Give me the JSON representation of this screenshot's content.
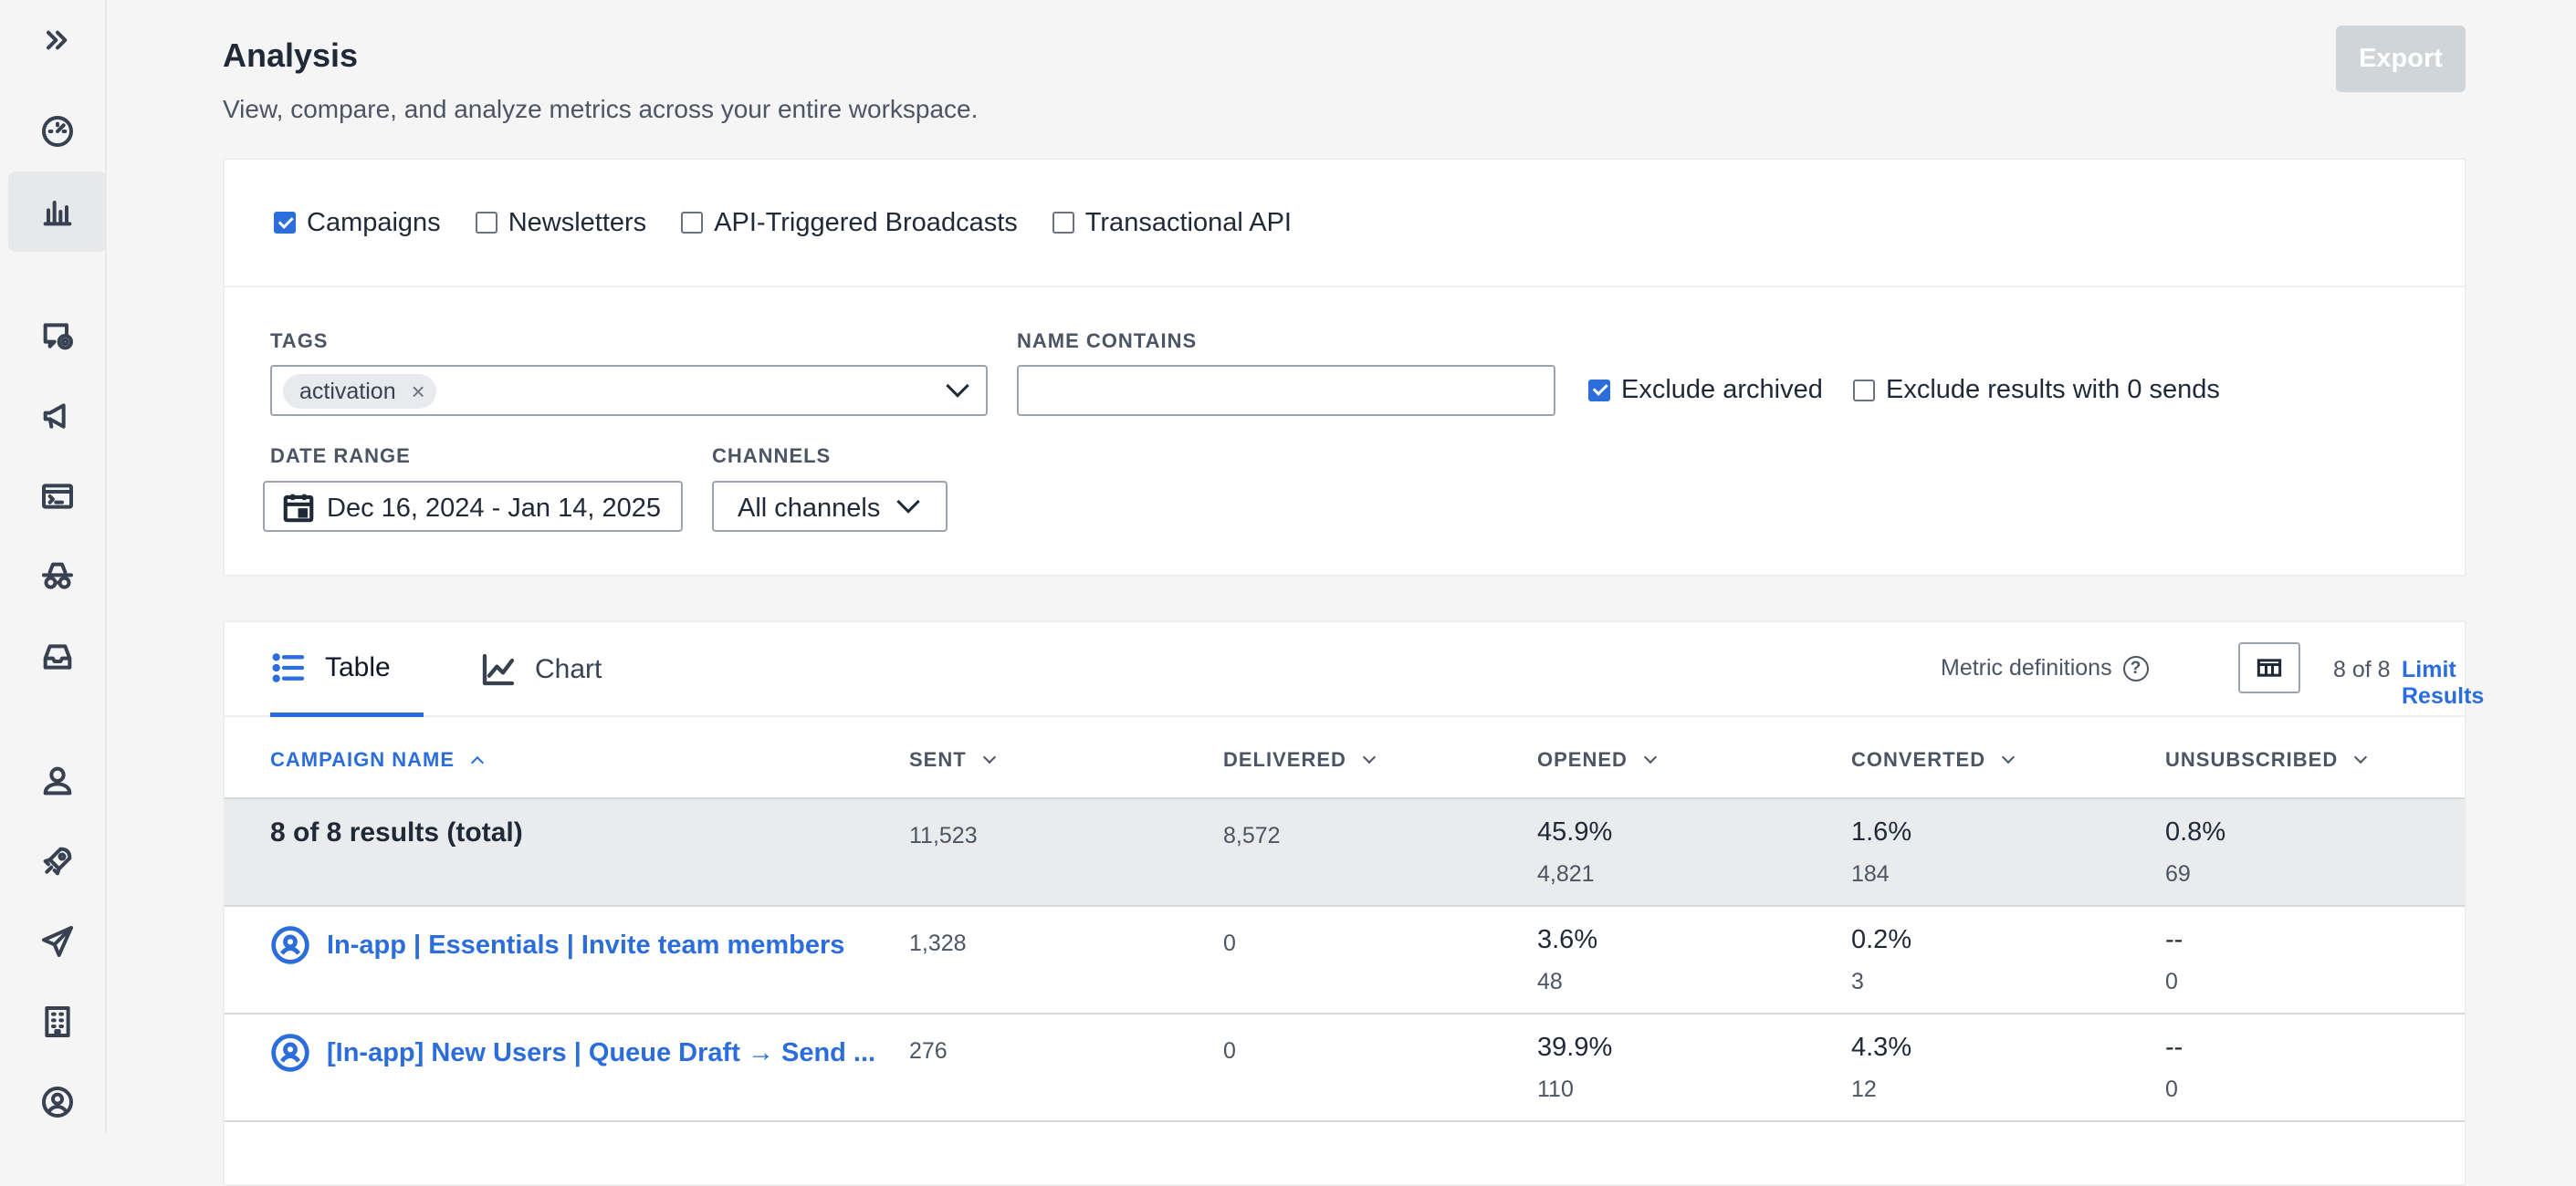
{
  "sidebar": {
    "icons": [
      "expand-icon",
      "dashboard-icon",
      "analysis-icon",
      "campaigns-icon",
      "broadcasts-icon",
      "api-icon",
      "spy-icon",
      "inbox-icon",
      "people-icon",
      "rocket-icon",
      "send-icon",
      "building-icon",
      "user-circle-icon"
    ]
  },
  "header": {
    "title": "Analysis",
    "subtitle": "View, compare, and analyze metrics across your entire workspace.",
    "export_label": "Export"
  },
  "filters": {
    "types": [
      {
        "label": "Campaigns",
        "checked": true
      },
      {
        "label": "Newsletters",
        "checked": false
      },
      {
        "label": "API-Triggered Broadcasts",
        "checked": false
      },
      {
        "label": "Transactional API",
        "checked": false
      }
    ],
    "tags_label": "TAGS",
    "tag_chip": "activation",
    "tag_chip_remove": "×",
    "name_contains_label": "NAME CONTAINS",
    "name_contains_value": "",
    "exclude_archived_label": "Exclude archived",
    "exclude_archived_checked": true,
    "exclude_zero_label": "Exclude results with 0 sends",
    "exclude_zero_checked": false,
    "date_range_label": "DATE RANGE",
    "date_range_value": "Dec 16, 2024 - Jan 14, 2025",
    "channels_label": "CHANNELS",
    "channels_value": "All channels"
  },
  "results": {
    "tabs": {
      "table": "Table",
      "chart": "Chart"
    },
    "active_tab": "Table",
    "metric_definitions": "Metric definitions",
    "help_glyph": "?",
    "count": "8 of 8",
    "limit_results": "Limit Results",
    "columns": {
      "name": "CAMPAIGN NAME",
      "sent": "SENT",
      "delivered": "DELIVERED",
      "opened": "OPENED",
      "converted": "CONVERTED",
      "unsubscribed": "UNSUBSCRIBED"
    },
    "total": {
      "label": "8 of 8 results (total)",
      "sent": "11,523",
      "delivered": "8,572",
      "opened_pct": "45.9%",
      "opened": "4,821",
      "converted_pct": "1.6%",
      "converted": "184",
      "unsub_pct": "0.8%",
      "unsub": "69"
    },
    "rows": [
      {
        "name": "In-app | Essentials | Invite team members",
        "sent": "1,328",
        "delivered": "0",
        "opened_pct": "3.6%",
        "opened": "48",
        "converted_pct": "0.2%",
        "converted": "3",
        "unsub_pct": "--",
        "unsub": "0"
      },
      {
        "name": "[In-app] New Users | Queue Draft → Send ...",
        "sent": "276",
        "delivered": "0",
        "opened_pct": "39.9%",
        "opened": "110",
        "converted_pct": "4.3%",
        "converted": "12",
        "unsub_pct": "--",
        "unsub": "0"
      }
    ]
  }
}
